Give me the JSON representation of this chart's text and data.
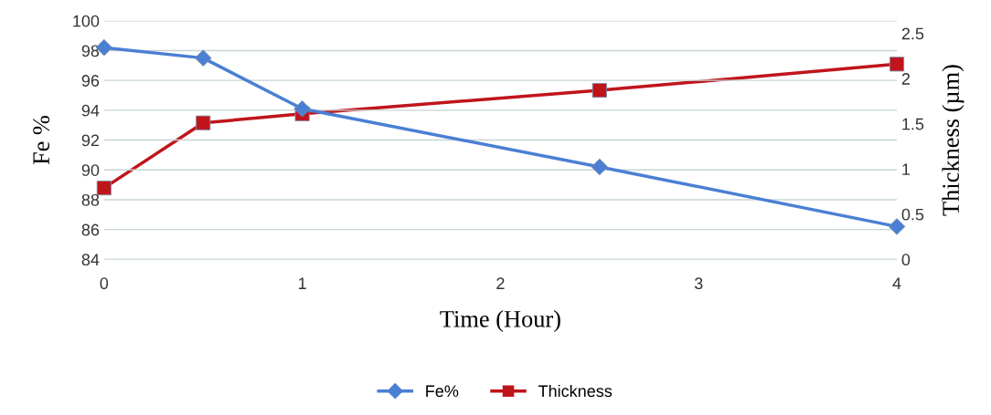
{
  "chart_data": {
    "type": "line",
    "xlabel": "Time (Hour)",
    "ylabel": "Fe %",
    "y2label": "Thickness (µm)",
    "x": [
      0,
      0.5,
      1,
      2.5,
      4
    ],
    "series": [
      {
        "name": "Fe%",
        "color": "#4a7fd4",
        "marker": "diamond",
        "values": [
          98.2,
          97.5,
          94.1,
          90.2,
          86.2
        ]
      },
      {
        "name": "Thickness",
        "color": "#c0141b",
        "marker": "square",
        "axis": "y2",
        "values": [
          0.79,
          1.51,
          1.61,
          1.87,
          2.16
        ]
      }
    ],
    "xlim": [
      0,
      4
    ],
    "xticks": [
      0,
      1,
      2,
      3,
      4
    ],
    "ylim": [
      84,
      100
    ],
    "yticks": [
      84,
      86,
      88,
      90,
      92,
      94,
      96,
      98,
      100
    ],
    "y2lim": [
      0,
      2.64
    ],
    "y2ticks": [
      0,
      0.5,
      1,
      1.5,
      2,
      2.5
    ],
    "grid": "y",
    "legend": "bottom",
    "line_style": "solid"
  }
}
